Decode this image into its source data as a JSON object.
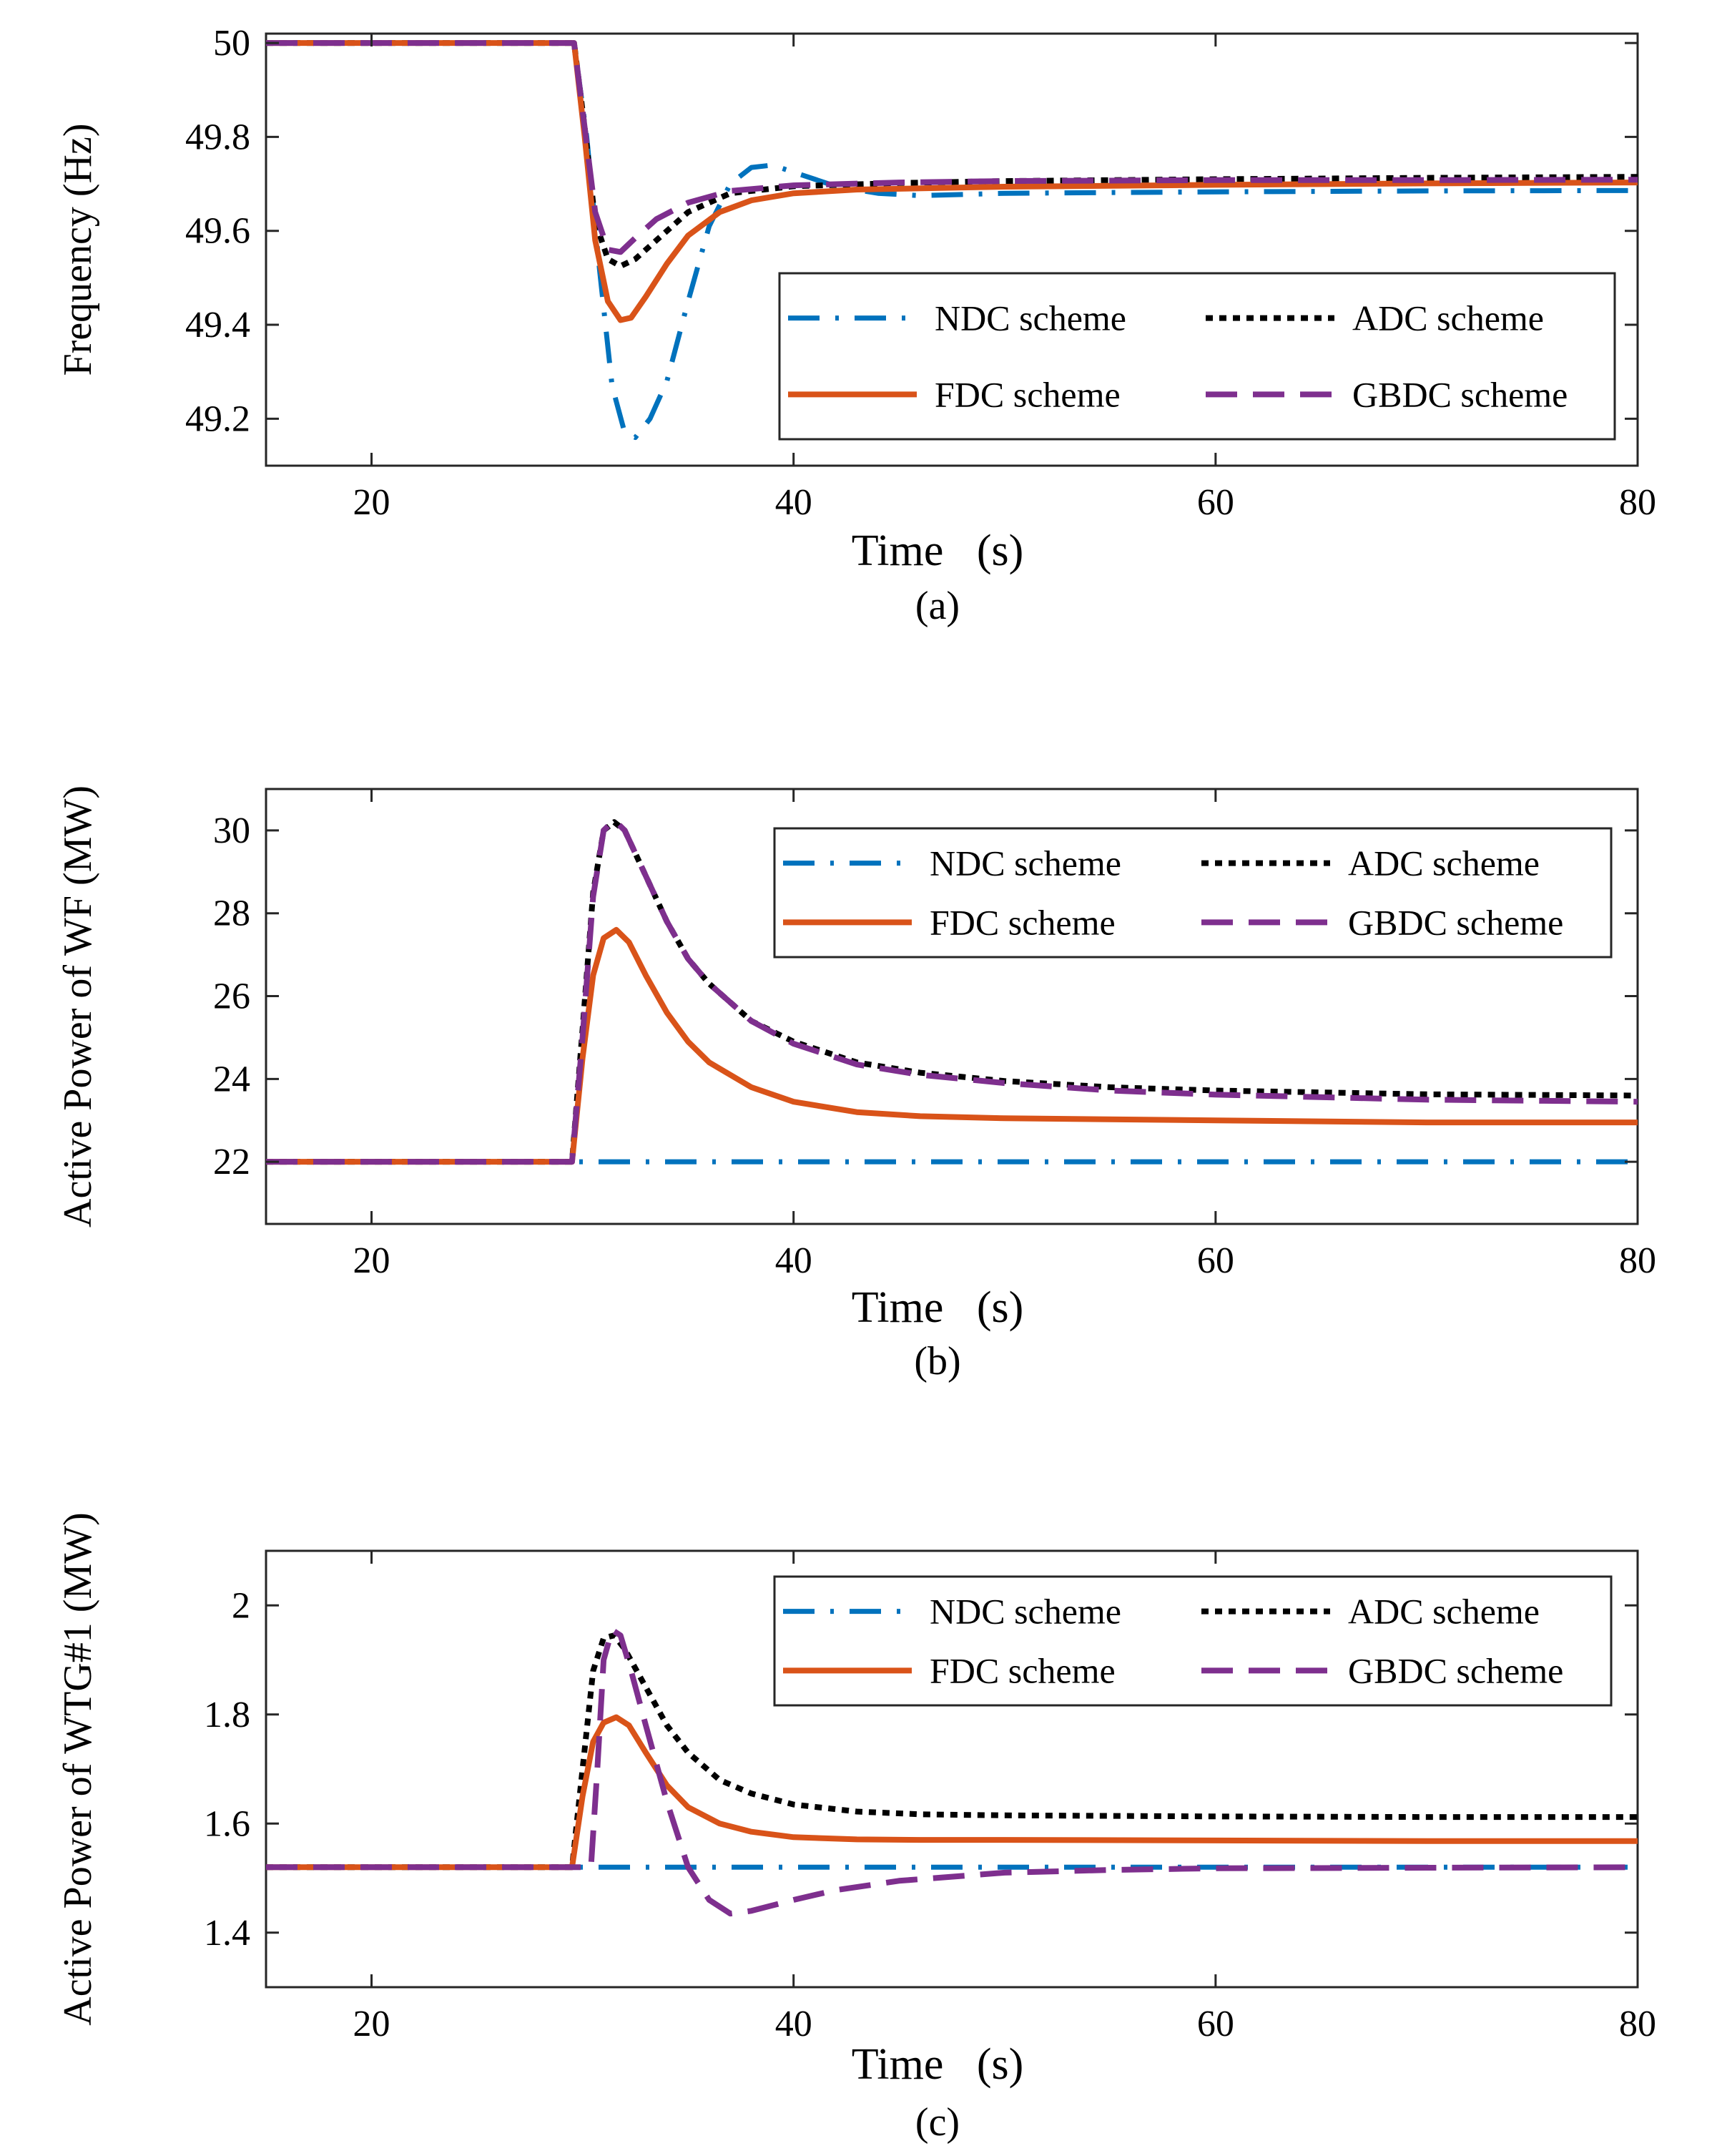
{
  "figure": {
    "colors": {
      "NDC": "#0072BD",
      "FDC": "#D95319",
      "ADC": "#000000",
      "GBDC": "#7E2F8E"
    },
    "line_styles": {
      "NDC": "dash-dot",
      "FDC": "solid",
      "ADC": "dotted",
      "GBDC": "dashed"
    }
  },
  "chart_data": [
    {
      "type": "line",
      "caption": "(a)",
      "xlabel": "Time   (s)",
      "ylabel": "Frequency  (Hz)",
      "xlim": [
        15,
        80
      ],
      "ylim": [
        49.1,
        50.02
      ],
      "xticks": [
        20,
        40,
        60,
        80
      ],
      "yticks": [
        49.2,
        49.4,
        49.6,
        49.8,
        50
      ],
      "ytick_labels": [
        "49.2",
        "49.4",
        "49.6",
        "49.8",
        "50"
      ],
      "legend_position": "lower-right",
      "grid": false,
      "series": [
        {
          "key": "NDC",
          "name": "NDC scheme",
          "x": [
            15,
            29.6,
            30.2,
            30.8,
            31.4,
            32.0,
            32.5,
            33.2,
            34.0,
            35.0,
            36.0,
            37.0,
            38.0,
            39.0,
            40.0,
            41.0,
            42.0,
            44.0,
            46.0,
            50.0,
            60.0,
            70.0,
            80.0
          ],
          "y": [
            50,
            50,
            49.8,
            49.52,
            49.27,
            49.17,
            49.16,
            49.2,
            49.28,
            49.45,
            49.61,
            49.7,
            49.735,
            49.74,
            49.725,
            49.71,
            49.695,
            49.68,
            49.675,
            49.68,
            49.683,
            49.685,
            49.686
          ]
        },
        {
          "key": "ADC",
          "name": "ADC scheme",
          "x": [
            15,
            29.6,
            30.1,
            30.6,
            31.2,
            31.8,
            32.5,
            33.5,
            35.0,
            37.0,
            40.0,
            45.0,
            50.0,
            60.0,
            70.0,
            80.0
          ],
          "y": [
            50,
            50,
            49.82,
            49.62,
            49.54,
            49.525,
            49.54,
            49.58,
            49.64,
            49.68,
            49.695,
            49.702,
            49.706,
            49.71,
            49.713,
            49.715
          ]
        },
        {
          "key": "FDC",
          "name": "FDC scheme",
          "x": [
            15,
            29.6,
            30.1,
            30.6,
            31.2,
            31.8,
            32.3,
            33.0,
            34.0,
            35.0,
            36.5,
            38.0,
            40.0,
            43.0,
            50.0,
            60.0,
            70.0,
            80.0
          ],
          "y": [
            50,
            50,
            49.8,
            49.58,
            49.45,
            49.41,
            49.415,
            49.46,
            49.53,
            49.59,
            49.64,
            49.665,
            49.68,
            49.688,
            49.694,
            49.698,
            49.701,
            49.703
          ]
        },
        {
          "key": "GBDC",
          "name": "GBDC scheme",
          "x": [
            15,
            29.6,
            30.1,
            30.6,
            31.2,
            31.8,
            32.5,
            33.5,
            35.0,
            37.0,
            40.0,
            45.0,
            50.0,
            60.0,
            70.0,
            80.0
          ],
          "y": [
            50,
            50,
            49.82,
            49.64,
            49.56,
            49.555,
            49.585,
            49.625,
            49.66,
            49.685,
            49.697,
            49.703,
            49.706,
            49.708,
            49.708,
            49.709
          ]
        }
      ],
      "legend_order": [
        "NDC",
        "ADC",
        "FDC",
        "GBDC"
      ]
    },
    {
      "type": "line",
      "caption": "(b)",
      "xlabel": "Time   (s)",
      "ylabel": "Active Power of WF  (MW)",
      "xlim": [
        15,
        80
      ],
      "ylim": [
        20.5,
        31
      ],
      "xticks": [
        20,
        40,
        60,
        80
      ],
      "yticks": [
        22,
        24,
        26,
        28,
        30
      ],
      "ytick_labels": [
        "22",
        "24",
        "26",
        "28",
        "30"
      ],
      "legend_position": "top-right",
      "grid": false,
      "series": [
        {
          "key": "NDC",
          "name": "NDC scheme",
          "x": [
            15,
            80
          ],
          "y": [
            22,
            22
          ]
        },
        {
          "key": "ADC",
          "name": "ADC scheme",
          "x": [
            15,
            29.5,
            30.0,
            30.5,
            31.0,
            31.5,
            32.0,
            33.0,
            34.0,
            35.0,
            36.0,
            38.0,
            40.0,
            43.0,
            46.0,
            50.0,
            55.0,
            60.0,
            70.0,
            80.0
          ],
          "y": [
            22,
            22,
            25.2,
            28.5,
            30.0,
            30.2,
            30.0,
            28.9,
            27.8,
            26.9,
            26.3,
            25.4,
            24.9,
            24.4,
            24.15,
            23.95,
            23.8,
            23.72,
            23.63,
            23.6
          ]
        },
        {
          "key": "FDC",
          "name": "FDC scheme",
          "x": [
            15,
            29.5,
            30.0,
            30.5,
            31.0,
            31.6,
            32.2,
            33.0,
            34.0,
            35.0,
            36.0,
            38.0,
            40.0,
            43.0,
            46.0,
            50.0,
            60.0,
            70.0,
            80.0
          ],
          "y": [
            22,
            22,
            24.5,
            26.5,
            27.4,
            27.6,
            27.3,
            26.5,
            25.6,
            24.9,
            24.4,
            23.8,
            23.45,
            23.2,
            23.1,
            23.05,
            23.0,
            22.95,
            22.95
          ]
        },
        {
          "key": "GBDC",
          "name": "GBDC scheme",
          "x": [
            15,
            29.5,
            30.0,
            30.5,
            31.0,
            31.5,
            32.0,
            33.0,
            34.0,
            35.0,
            36.0,
            38.0,
            40.0,
            43.0,
            46.0,
            50.0,
            55.0,
            60.0,
            70.0,
            80.0
          ],
          "y": [
            22,
            22,
            25.0,
            28.4,
            30.0,
            30.25,
            30.0,
            28.9,
            27.8,
            26.9,
            26.3,
            25.4,
            24.85,
            24.35,
            24.1,
            23.9,
            23.72,
            23.62,
            23.5,
            23.45
          ]
        }
      ],
      "legend_order": [
        "NDC",
        "ADC",
        "FDC",
        "GBDC"
      ]
    },
    {
      "type": "line",
      "caption": "(c)",
      "xlabel": "Time   (s)",
      "ylabel": "Active Power of WTG#1  (MW)",
      "xlim": [
        15,
        80
      ],
      "ylim": [
        1.3,
        2.1
      ],
      "xticks": [
        20,
        40,
        60,
        80
      ],
      "yticks": [
        1.4,
        1.6,
        1.8,
        2
      ],
      "ytick_labels": [
        "1.4",
        "1.6",
        "1.8",
        "2"
      ],
      "legend_position": "top-right",
      "grid": false,
      "series": [
        {
          "key": "NDC",
          "name": "NDC scheme",
          "x": [
            15,
            80
          ],
          "y": [
            1.52,
            1.52
          ]
        },
        {
          "key": "ADC",
          "name": "ADC scheme",
          "x": [
            15,
            29.5,
            30.0,
            30.5,
            31.0,
            31.5,
            32.0,
            33.0,
            34.0,
            35.0,
            36.5,
            38.0,
            40.0,
            43.0,
            46.0,
            50.0,
            60.0,
            70.0,
            80.0
          ],
          "y": [
            1.52,
            1.52,
            1.7,
            1.88,
            1.94,
            1.945,
            1.92,
            1.85,
            1.78,
            1.73,
            1.68,
            1.655,
            1.635,
            1.622,
            1.617,
            1.615,
            1.613,
            1.612,
            1.612
          ]
        },
        {
          "key": "FDC",
          "name": "FDC scheme",
          "x": [
            15,
            29.5,
            30.0,
            30.5,
            31.0,
            31.6,
            32.2,
            33.0,
            34.0,
            35.0,
            36.5,
            38.0,
            40.0,
            43.0,
            46.0,
            50.0,
            60.0,
            70.0,
            80.0
          ],
          "y": [
            1.52,
            1.52,
            1.65,
            1.75,
            1.785,
            1.795,
            1.78,
            1.73,
            1.67,
            1.63,
            1.6,
            1.585,
            1.575,
            1.571,
            1.57,
            1.57,
            1.569,
            1.568,
            1.568
          ]
        },
        {
          "key": "GBDC",
          "name": "GBDC scheme",
          "x": [
            15,
            30.4,
            30.7,
            31.0,
            31.4,
            31.8,
            32.3,
            33.0,
            34.0,
            35.0,
            36.0,
            37.0,
            38.0,
            40.0,
            42.0,
            45.0,
            50.0,
            55.0,
            60.0,
            70.0,
            80.0
          ],
          "y": [
            1.52,
            1.52,
            1.7,
            1.9,
            1.955,
            1.945,
            1.88,
            1.78,
            1.64,
            1.52,
            1.46,
            1.435,
            1.44,
            1.46,
            1.478,
            1.495,
            1.51,
            1.515,
            1.518,
            1.519,
            1.52
          ]
        }
      ],
      "legend_order": [
        "NDC",
        "ADC",
        "FDC",
        "GBDC"
      ]
    }
  ]
}
